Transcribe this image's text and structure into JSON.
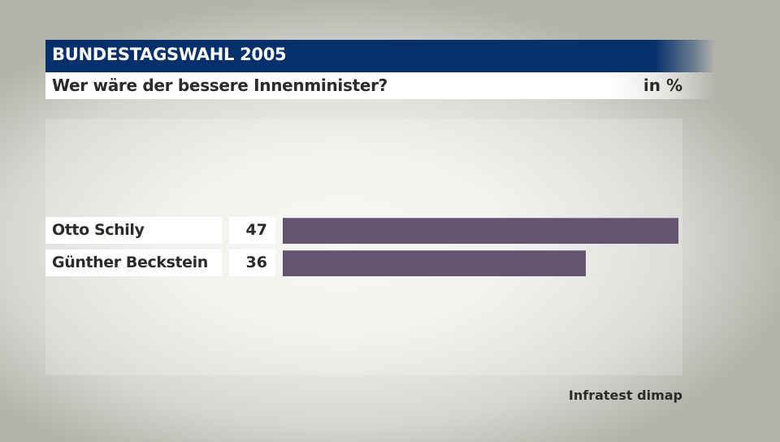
{
  "header": {
    "title": "BUNDESTAGSWAHL 2005",
    "subtitle": "Wer wäre der bessere Innenminister?",
    "unit": "in %"
  },
  "colors": {
    "header_bg": "#06306b",
    "bar": "#65546f",
    "text": "#2b2b2b"
  },
  "rows": [
    {
      "label": "Otto Schily",
      "value": "47"
    },
    {
      "label": "Günther Beckstein",
      "value": "36"
    }
  ],
  "source": "Infratest dimap",
  "chart_data": {
    "type": "bar",
    "orientation": "horizontal",
    "title": "BUNDESTAGSWAHL 2005",
    "subtitle": "Wer wäre der bessere Innenminister?",
    "unit": "in %",
    "categories": [
      "Otto Schily",
      "Günther Beckstein"
    ],
    "values": [
      47,
      36
    ],
    "xlabel": "",
    "ylabel": "",
    "grid": false,
    "legend": "none",
    "source": "Infratest dimap"
  }
}
